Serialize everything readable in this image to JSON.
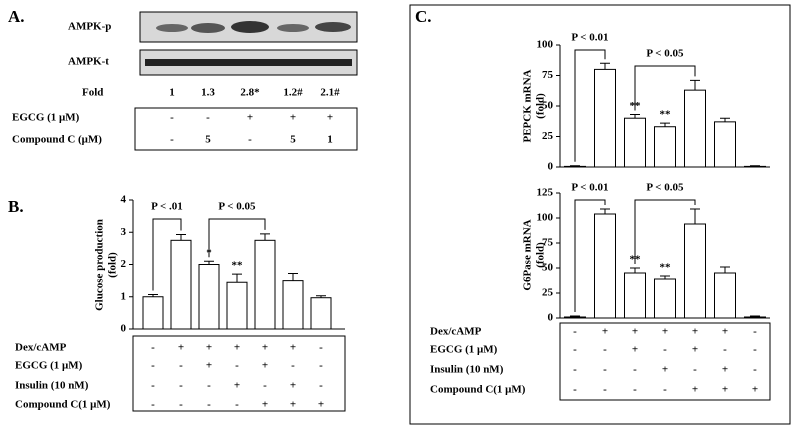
{
  "panel_a": {
    "label": "A.",
    "blot_labels": [
      "AMPK-p",
      "AMPK-t"
    ],
    "fold_label": "Fold",
    "fold": [
      "1",
      "1.3",
      "2.8*",
      "1.2#",
      "2.1#"
    ],
    "rows": [
      {
        "label": "EGCG (1 μM)",
        "cells": [
          "-",
          "-",
          "+",
          "+",
          "+"
        ]
      },
      {
        "label": "Compound C (μM)",
        "cells": [
          "-",
          "5",
          "-",
          "5",
          "1"
        ]
      }
    ]
  },
  "chart_data": [
    {
      "type": "bar",
      "panel_label": "B.",
      "ylabel": [
        "Glucose production",
        "(fold)"
      ],
      "categories": [
        null,
        null,
        null,
        null,
        null,
        null,
        null
      ],
      "values": [
        1.0,
        2.75,
        2.0,
        1.45,
        2.75,
        1.5,
        0.97
      ],
      "errors": [
        0.07,
        0.18,
        0.1,
        0.25,
        0.2,
        0.22,
        0.06
      ],
      "stars": [
        null,
        null,
        "*",
        "**",
        null,
        null,
        null
      ],
      "brackets": [
        "P < .01",
        "P < 0.05"
      ],
      "ylim": [
        0,
        4
      ],
      "yticks": [
        0,
        1,
        2,
        3,
        4
      ],
      "table": [
        {
          "label": "Dex/cAMP",
          "cells": [
            "-",
            "+",
            "+",
            "+",
            "+",
            "+",
            "-"
          ]
        },
        {
          "label": "EGCG (1 μM)",
          "cells": [
            "-",
            "-",
            "+",
            "-",
            "+",
            "-",
            "-"
          ]
        },
        {
          "label": "Insulin (10 nM)",
          "cells": [
            "-",
            "-",
            "-",
            "+",
            "-",
            "+",
            "-"
          ]
        },
        {
          "label": "Compound C(1 μM)",
          "cells": [
            "-",
            "-",
            "-",
            "-",
            "+",
            "+",
            "+"
          ]
        }
      ]
    },
    {
      "type": "bar",
      "panel_label": "C.",
      "ylabel": [
        "PEPCK mRNA",
        "(fold)"
      ],
      "categories": [
        null,
        null,
        null,
        null,
        null,
        null,
        null
      ],
      "values": [
        0.5,
        80,
        40,
        33,
        63,
        37,
        0.5
      ],
      "errors": [
        0.5,
        5,
        3,
        3,
        8,
        3,
        0.5
      ],
      "stars": [
        null,
        null,
        "**",
        "**",
        null,
        null,
        null
      ],
      "brackets": [
        "P < 0.01",
        "P < 0.05"
      ],
      "ylim": [
        0,
        100
      ],
      "yticks": [
        0,
        25,
        50,
        75,
        100
      ]
    },
    {
      "type": "bar",
      "ylabel": [
        "G6Pase mRNA",
        "(fold)"
      ],
      "categories": [
        null,
        null,
        null,
        null,
        null,
        null,
        null
      ],
      "values": [
        1,
        104,
        45,
        39,
        94,
        45,
        1
      ],
      "errors": [
        1,
        5,
        5,
        3,
        15,
        6,
        1
      ],
      "stars": [
        null,
        null,
        "**",
        "**",
        null,
        null,
        null
      ],
      "brackets": [
        "P < 0.01",
        "P < 0.05"
      ],
      "ylim": [
        0,
        125
      ],
      "yticks": [
        0,
        25,
        50,
        75,
        100,
        125
      ],
      "table": [
        {
          "label": "Dex/cAMP",
          "cells": [
            "-",
            "+",
            "+",
            "+",
            "+",
            "+",
            "-"
          ]
        },
        {
          "label": "EGCG (1 μM)",
          "cells": [
            "-",
            "-",
            "+",
            "-",
            "+",
            "-",
            "-"
          ]
        },
        {
          "label": "Insulin (10 nM)",
          "cells": [
            "-",
            "-",
            "-",
            "+",
            "-",
            "+",
            "-"
          ]
        },
        {
          "label": "Compound C(1 μM)",
          "cells": [
            "-",
            "-",
            "-",
            "-",
            "+",
            "+",
            "+"
          ]
        }
      ]
    }
  ]
}
